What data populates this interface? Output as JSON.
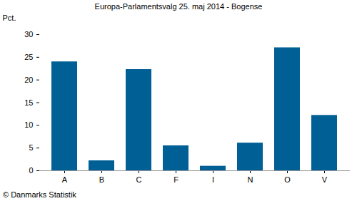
{
  "chart_data": {
    "type": "bar",
    "title": "Europa-Parlamentsvalg 25. maj 2014 - Bogense",
    "y_label": "Pct.",
    "caption": "© Danmarks Statistik",
    "categories": [
      "A",
      "B",
      "C",
      "F",
      "I",
      "N",
      "O",
      "V"
    ],
    "values": [
      24.0,
      2.2,
      22.3,
      5.5,
      1.0,
      6.1,
      27.1,
      12.2
    ],
    "color": "#005f94",
    "ylim": [
      0,
      30
    ],
    "yticks": [
      0,
      5,
      10,
      15,
      20,
      25,
      30
    ],
    "grid": false
  }
}
